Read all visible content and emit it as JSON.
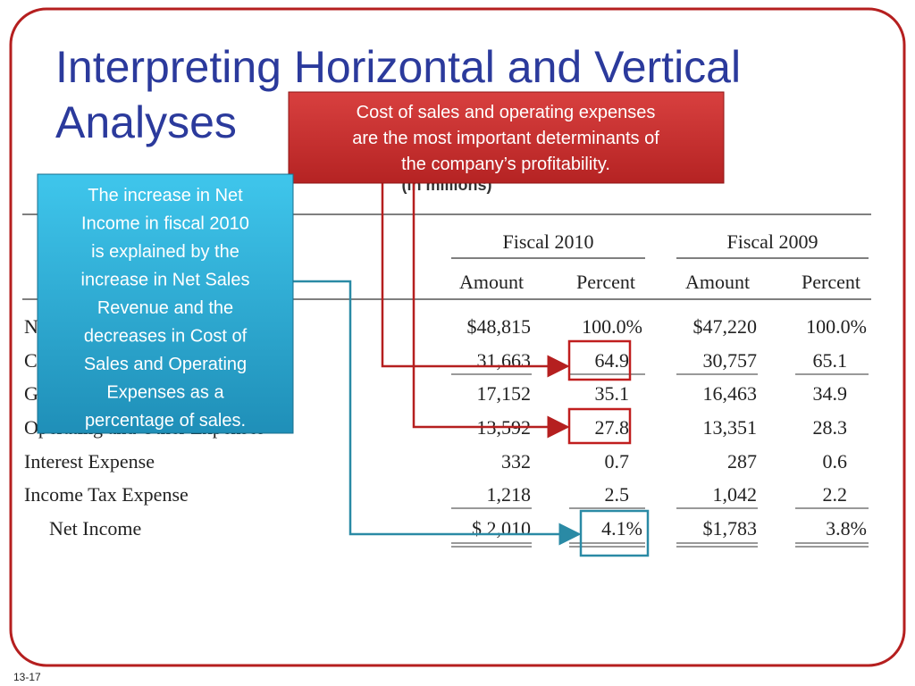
{
  "header": {
    "title_lines": [
      "Interpreting Horizontal and Vertical",
      "Analyses"
    ]
  },
  "callouts": {
    "red": [
      "Cost of sales and operating expenses",
      "are the most important determinants of",
      "the company’s profitability."
    ],
    "blue": [
      "The increase in Net",
      "Income in fiscal 2010",
      "is explained by the",
      "increase in Net Sales",
      "Revenue and the",
      "decreases in Cost of",
      "Sales and Operating",
      "Expenses as a",
      "percentage of sales."
    ]
  },
  "table": {
    "caption": "(in millions)",
    "groups": [
      "Fiscal 2010",
      "Fiscal 2009"
    ],
    "columns": [
      "Amount",
      "Percent",
      "Amount",
      "Percent"
    ],
    "rows": [
      [
        "Net Sales Revenue",
        "$48,815",
        "100.0%",
        "$47,220",
        "100.0%"
      ],
      [
        "Cost of Sales",
        "31,663",
        "64.9",
        "30,757",
        "65.1"
      ],
      [
        "Gross Profit",
        "17,152",
        "35.1",
        "16,463",
        "34.9"
      ],
      [
        "Operating and Other Expenses",
        "13,592",
        "27.8",
        "13,351",
        "28.3"
      ],
      [
        "Interest Expense",
        "332",
        "0.7",
        "287",
        "0.6"
      ],
      [
        "Income Tax Expense",
        "1,218",
        "2.5",
        "1,042",
        "2.2"
      ],
      [
        "Net Income",
        "$  2,010",
        "4.1%",
        "$1,783",
        "3.8%"
      ]
    ]
  },
  "footer": {
    "slide_number": "13-17"
  }
}
